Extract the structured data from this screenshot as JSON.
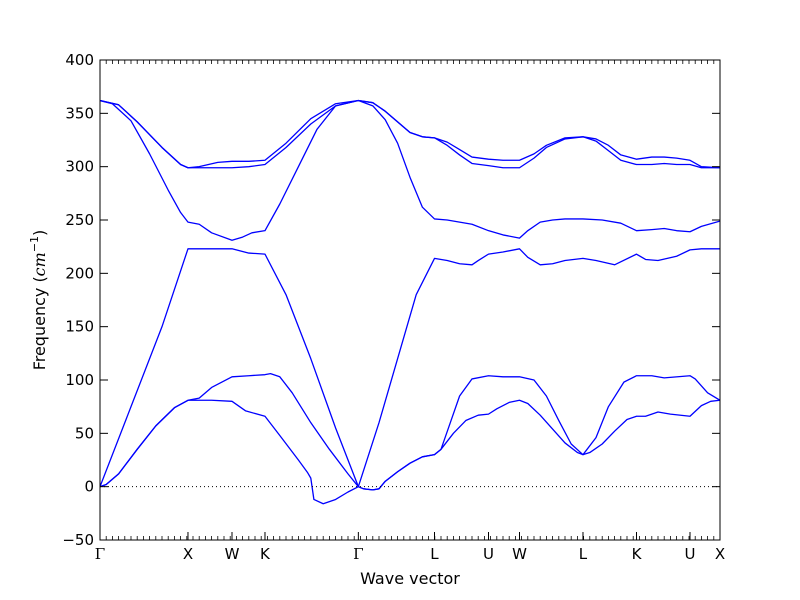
{
  "chart_data": {
    "type": "line",
    "title": "",
    "xlabel": "Wave vector",
    "ylabel": "Frequency (cm⁻¹)",
    "ylabel_parts": {
      "prefix": "Frequency (",
      "unit": "cm",
      "exponent": "−1",
      "suffix": ")"
    },
    "ylim": [
      -50,
      400
    ],
    "xlim": [
      0,
      1.0
    ],
    "y_ticks": [
      -50,
      0,
      50,
      100,
      150,
      200,
      250,
      300,
      350,
      400
    ],
    "high_symmetry_points": [
      {
        "label": "Γ",
        "x": 0.0
      },
      {
        "label": "X",
        "x": 0.1419
      },
      {
        "label": "W",
        "x": 0.2129
      },
      {
        "label": "K",
        "x": 0.2661
      },
      {
        "label": "Γ",
        "x": 0.4167
      },
      {
        "label": "L",
        "x": 0.5395
      },
      {
        "label": "U",
        "x": 0.6266
      },
      {
        "label": "W",
        "x": 0.6766
      },
      {
        "label": "L",
        "x": 0.779
      },
      {
        "label": "K",
        "x": 0.8653
      },
      {
        "label": "U",
        "x": 0.9516
      },
      {
        "label": "X",
        "x": 1.0
      }
    ],
    "zero_line": true,
    "grid": false,
    "line_color": "#0000ff",
    "series": [
      {
        "points": [
          [
            0,
            0
          ],
          [
            0.01,
            2
          ],
          [
            0.03,
            12
          ],
          [
            0.06,
            35
          ],
          [
            0.09,
            57
          ],
          [
            0.12,
            74
          ],
          [
            0.1419,
            81
          ],
          [
            0.18,
            81
          ],
          [
            0.2129,
            80
          ],
          [
            0.235,
            71
          ],
          [
            0.2661,
            66
          ],
          [
            0.29,
            48
          ],
          [
            0.32,
            25
          ],
          [
            0.335,
            13
          ],
          [
            0.34,
            8
          ],
          [
            0.345,
            -12
          ],
          [
            0.36,
            -16
          ],
          [
            0.38,
            -12
          ],
          [
            0.4,
            -5
          ],
          [
            0.4167,
            0
          ]
        ]
      },
      {
        "points": [
          [
            0,
            0
          ],
          [
            0.01,
            2
          ],
          [
            0.03,
            12
          ],
          [
            0.06,
            35
          ],
          [
            0.09,
            57
          ],
          [
            0.12,
            74
          ],
          [
            0.1419,
            81
          ],
          [
            0.16,
            83
          ],
          [
            0.18,
            93
          ],
          [
            0.2129,
            103
          ],
          [
            0.24,
            104
          ],
          [
            0.2661,
            105
          ],
          [
            0.275,
            106
          ],
          [
            0.29,
            103
          ],
          [
            0.31,
            88
          ],
          [
            0.34,
            60
          ],
          [
            0.37,
            35
          ],
          [
            0.4,
            12
          ],
          [
            0.4167,
            0
          ]
        ]
      },
      {
        "points": [
          [
            0,
            0
          ],
          [
            0.05,
            75
          ],
          [
            0.1,
            150
          ],
          [
            0.1419,
            223
          ],
          [
            0.18,
            223
          ],
          [
            0.2129,
            223
          ],
          [
            0.24,
            219
          ],
          [
            0.2661,
            218
          ],
          [
            0.3,
            180
          ],
          [
            0.34,
            120
          ],
          [
            0.38,
            55
          ],
          [
            0.4167,
            0
          ]
        ]
      },
      {
        "points": [
          [
            0,
            362
          ],
          [
            0.03,
            358
          ],
          [
            0.06,
            342
          ],
          [
            0.1,
            318
          ],
          [
            0.13,
            302
          ],
          [
            0.1419,
            299
          ],
          [
            0.18,
            299
          ],
          [
            0.2129,
            299
          ],
          [
            0.24,
            300
          ],
          [
            0.2661,
            302
          ],
          [
            0.3,
            318
          ],
          [
            0.34,
            340
          ],
          [
            0.38,
            357
          ],
          [
            0.4167,
            362
          ]
        ]
      },
      {
        "points": [
          [
            0,
            362
          ],
          [
            0.03,
            358
          ],
          [
            0.06,
            342
          ],
          [
            0.1,
            318
          ],
          [
            0.13,
            302
          ],
          [
            0.1419,
            299
          ],
          [
            0.16,
            300
          ],
          [
            0.19,
            304
          ],
          [
            0.2129,
            305
          ],
          [
            0.24,
            305
          ],
          [
            0.2661,
            306
          ],
          [
            0.3,
            322
          ],
          [
            0.34,
            345
          ],
          [
            0.38,
            359
          ],
          [
            0.4167,
            362
          ]
        ]
      },
      {
        "points": [
          [
            0,
            362
          ],
          [
            0.02,
            359
          ],
          [
            0.05,
            343
          ],
          [
            0.08,
            312
          ],
          [
            0.11,
            278
          ],
          [
            0.13,
            257
          ],
          [
            0.1419,
            248
          ],
          [
            0.16,
            246
          ],
          [
            0.18,
            238
          ],
          [
            0.2129,
            231
          ],
          [
            0.23,
            234
          ],
          [
            0.245,
            238
          ],
          [
            0.2661,
            240
          ],
          [
            0.29,
            265
          ],
          [
            0.32,
            300
          ],
          [
            0.35,
            335
          ],
          [
            0.38,
            357
          ],
          [
            0.4167,
            362
          ]
        ]
      },
      {
        "points": [
          [
            0.4167,
            0
          ],
          [
            0.425,
            -2
          ],
          [
            0.44,
            -3
          ],
          [
            0.45,
            -2
          ],
          [
            0.46,
            5
          ],
          [
            0.48,
            14
          ],
          [
            0.5,
            22
          ],
          [
            0.52,
            28
          ],
          [
            0.5395,
            30
          ],
          [
            0.55,
            35
          ],
          [
            0.57,
            50
          ],
          [
            0.59,
            62
          ],
          [
            0.61,
            67
          ],
          [
            0.6266,
            68
          ],
          [
            0.64,
            73
          ],
          [
            0.66,
            79
          ],
          [
            0.6766,
            81
          ],
          [
            0.69,
            78
          ],
          [
            0.71,
            67
          ],
          [
            0.73,
            54
          ],
          [
            0.75,
            41
          ],
          [
            0.77,
            32
          ],
          [
            0.779,
            30
          ],
          [
            0.79,
            32
          ],
          [
            0.81,
            40
          ],
          [
            0.83,
            52
          ],
          [
            0.85,
            63
          ],
          [
            0.8653,
            66
          ],
          [
            0.88,
            66
          ],
          [
            0.9,
            70
          ],
          [
            0.92,
            68
          ],
          [
            0.9516,
            66
          ],
          [
            0.97,
            76
          ],
          [
            0.985,
            80
          ],
          [
            1.0,
            81
          ]
        ]
      },
      {
        "points": [
          [
            0.4167,
            0
          ],
          [
            0.425,
            -2
          ],
          [
            0.44,
            -3
          ],
          [
            0.45,
            -2
          ],
          [
            0.46,
            5
          ],
          [
            0.48,
            14
          ],
          [
            0.5,
            22
          ],
          [
            0.52,
            28
          ],
          [
            0.5395,
            30
          ],
          [
            0.55,
            35
          ],
          [
            0.565,
            60
          ],
          [
            0.58,
            85
          ],
          [
            0.6,
            101
          ],
          [
            0.6266,
            104
          ],
          [
            0.65,
            103
          ],
          [
            0.6766,
            103
          ],
          [
            0.7,
            100
          ],
          [
            0.72,
            85
          ],
          [
            0.74,
            62
          ],
          [
            0.76,
            40
          ],
          [
            0.779,
            30
          ],
          [
            0.8,
            46
          ],
          [
            0.82,
            75
          ],
          [
            0.845,
            98
          ],
          [
            0.8653,
            104
          ],
          [
            0.89,
            104
          ],
          [
            0.91,
            102
          ],
          [
            0.9516,
            104
          ],
          [
            0.96,
            101
          ],
          [
            0.98,
            88
          ],
          [
            1.0,
            81
          ]
        ]
      },
      {
        "points": [
          [
            0.4167,
            0
          ],
          [
            0.45,
            60
          ],
          [
            0.48,
            120
          ],
          [
            0.51,
            180
          ],
          [
            0.5395,
            214
          ],
          [
            0.56,
            212
          ],
          [
            0.58,
            209
          ],
          [
            0.6,
            208
          ],
          [
            0.61,
            212
          ],
          [
            0.6266,
            218
          ],
          [
            0.65,
            220
          ],
          [
            0.6766,
            223
          ],
          [
            0.69,
            215
          ],
          [
            0.71,
            208
          ],
          [
            0.73,
            209
          ],
          [
            0.75,
            212
          ],
          [
            0.779,
            214
          ],
          [
            0.8,
            212
          ],
          [
            0.83,
            208
          ],
          [
            0.8653,
            218
          ],
          [
            0.88,
            213
          ],
          [
            0.9,
            212
          ],
          [
            0.93,
            216
          ],
          [
            0.9516,
            222
          ],
          [
            0.97,
            223
          ],
          [
            1.0,
            223
          ]
        ]
      },
      {
        "points": [
          [
            0.4167,
            362
          ],
          [
            0.44,
            357
          ],
          [
            0.46,
            344
          ],
          [
            0.48,
            322
          ],
          [
            0.5,
            290
          ],
          [
            0.52,
            262
          ],
          [
            0.5395,
            251
          ],
          [
            0.56,
            250
          ],
          [
            0.58,
            248
          ],
          [
            0.6,
            246
          ],
          [
            0.6266,
            240
          ],
          [
            0.65,
            236
          ],
          [
            0.6766,
            233
          ],
          [
            0.69,
            240
          ],
          [
            0.71,
            248
          ],
          [
            0.73,
            250
          ],
          [
            0.75,
            251
          ],
          [
            0.779,
            251
          ],
          [
            0.81,
            250
          ],
          [
            0.84,
            247
          ],
          [
            0.8653,
            240
          ],
          [
            0.89,
            241
          ],
          [
            0.91,
            242
          ],
          [
            0.93,
            240
          ],
          [
            0.9516,
            239
          ],
          [
            0.97,
            244
          ],
          [
            1.0,
            249
          ]
        ]
      },
      {
        "points": [
          [
            0.4167,
            362
          ],
          [
            0.44,
            360
          ],
          [
            0.46,
            352
          ],
          [
            0.48,
            342
          ],
          [
            0.5,
            332
          ],
          [
            0.52,
            328
          ],
          [
            0.5395,
            327
          ],
          [
            0.56,
            323
          ],
          [
            0.58,
            316
          ],
          [
            0.6,
            309
          ],
          [
            0.6266,
            307
          ],
          [
            0.65,
            306
          ],
          [
            0.6766,
            306
          ],
          [
            0.7,
            312
          ],
          [
            0.72,
            320
          ],
          [
            0.75,
            327
          ],
          [
            0.779,
            328
          ],
          [
            0.8,
            326
          ],
          [
            0.82,
            320
          ],
          [
            0.84,
            311
          ],
          [
            0.8653,
            307
          ],
          [
            0.89,
            309
          ],
          [
            0.91,
            309
          ],
          [
            0.93,
            308
          ],
          [
            0.9516,
            306
          ],
          [
            0.97,
            300
          ],
          [
            1.0,
            299
          ]
        ]
      },
      {
        "points": [
          [
            0.4167,
            362
          ],
          [
            0.44,
            360
          ],
          [
            0.46,
            352
          ],
          [
            0.48,
            342
          ],
          [
            0.5,
            332
          ],
          [
            0.52,
            328
          ],
          [
            0.5395,
            327
          ],
          [
            0.56,
            320
          ],
          [
            0.58,
            311
          ],
          [
            0.6,
            303
          ],
          [
            0.6266,
            301
          ],
          [
            0.65,
            299
          ],
          [
            0.6766,
            299
          ],
          [
            0.7,
            308
          ],
          [
            0.72,
            318
          ],
          [
            0.75,
            326
          ],
          [
            0.779,
            328
          ],
          [
            0.8,
            324
          ],
          [
            0.82,
            315
          ],
          [
            0.84,
            306
          ],
          [
            0.8653,
            302
          ],
          [
            0.89,
            302
          ],
          [
            0.91,
            303
          ],
          [
            0.93,
            302
          ],
          [
            0.9516,
            302
          ],
          [
            0.97,
            299
          ],
          [
            1.0,
            299
          ]
        ]
      }
    ]
  }
}
